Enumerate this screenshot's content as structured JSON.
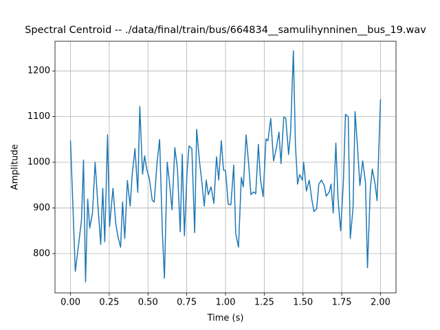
{
  "chart_data": {
    "type": "line",
    "title": "Spectral Centroid -- ./data/final/train/bus/664834__samulihynninen__bus_19.wav",
    "xlabel": "Time (s)",
    "ylabel": "Amplitude",
    "xlim": [
      -0.1,
      2.1
    ],
    "ylim": [
      714,
      1265
    ],
    "xticks": [
      {
        "value": 0,
        "label": "0.00"
      },
      {
        "value": 0.25,
        "label": "0.25"
      },
      {
        "value": 0.5,
        "label": "0.50"
      },
      {
        "value": 0.75,
        "label": "0.75"
      },
      {
        "value": 1,
        "label": "1.00"
      },
      {
        "value": 1.25,
        "label": "1.25"
      },
      {
        "value": 1.5,
        "label": "1.50"
      },
      {
        "value": 1.75,
        "label": "1.75"
      },
      {
        "value": 2,
        "label": "2.00"
      }
    ],
    "yticks": [
      800,
      900,
      1000,
      1100,
      1200
    ],
    "grid": true,
    "series": [
      {
        "color": "#1f77b4",
        "x": [
          0,
          0.031,
          0.058,
          0.071,
          0.084,
          0.097,
          0.111,
          0.124,
          0.142,
          0.159,
          0.177,
          0.195,
          0.208,
          0.221,
          0.239,
          0.252,
          0.274,
          0.292,
          0.305,
          0.323,
          0.336,
          0.35,
          0.367,
          0.385,
          0.398,
          0.416,
          0.434,
          0.447,
          0.465,
          0.478,
          0.491,
          0.509,
          0.527,
          0.54,
          0.558,
          0.575,
          0.593,
          0.606,
          0.624,
          0.637,
          0.655,
          0.673,
          0.69,
          0.708,
          0.721,
          0.735,
          0.752,
          0.765,
          0.783,
          0.801,
          0.814,
          0.832,
          0.845,
          0.863,
          0.876,
          0.889,
          0.907,
          0.925,
          0.942,
          0.956,
          0.973,
          0.987,
          1.0,
          1.018,
          1.035,
          1.053,
          1.066,
          1.084,
          1.102,
          1.115,
          1.133,
          1.15,
          1.164,
          1.181,
          1.195,
          1.212,
          1.226,
          1.243,
          1.261,
          1.274,
          1.292,
          1.31,
          1.327,
          1.345,
          1.358,
          1.376,
          1.389,
          1.407,
          1.42,
          1.438,
          1.451,
          1.465,
          1.478,
          1.496,
          1.504,
          1.522,
          1.54,
          1.558,
          1.571,
          1.588,
          1.602,
          1.619,
          1.637,
          1.65,
          1.668,
          1.681,
          1.695,
          1.712,
          1.726,
          1.743,
          1.761,
          1.774,
          1.792,
          1.805,
          1.823,
          1.836,
          1.854,
          1.867,
          1.885,
          1.903,
          1.916,
          1.934,
          1.947,
          1.965,
          1.978,
          2.0
        ],
        "values": [
          1048,
          761,
          836,
          874,
          1005,
          738,
          919,
          856,
          889,
          1000,
          904,
          820,
          943,
          826,
          1060,
          859,
          943,
          866,
          839,
          814,
          913,
          833,
          960,
          904,
          973,
          1030,
          934,
          1122,
          974,
          1014,
          986,
          964,
          917,
          913,
          998,
          1050,
          844,
          746,
          1000,
          961,
          896,
          1032,
          986,
          848,
          1018,
          839,
          979,
          1036,
          1030,
          846,
          1072,
          1003,
          964,
          904,
          961,
          929,
          946,
          910,
          1012,
          961,
          1047,
          983,
          982,
          908,
          907,
          994,
          844,
          814,
          967,
          946,
          1060,
          994,
          929,
          935,
          931,
          1039,
          961,
          925,
          1051,
          1047,
          1096,
          1003,
          1029,
          1066,
          997,
          1099,
          1096,
          1017,
          1066,
          1244,
          1039,
          952,
          973,
          961,
          1000,
          937,
          961,
          916,
          892,
          898,
          952,
          961,
          949,
          926,
          934,
          952,
          889,
          1042,
          919,
          850,
          961,
          1105,
          1099,
          833,
          901,
          1111,
          1021,
          949,
          1003,
          956,
          769,
          941,
          985,
          952,
          916,
          1138
        ]
      }
    ]
  }
}
